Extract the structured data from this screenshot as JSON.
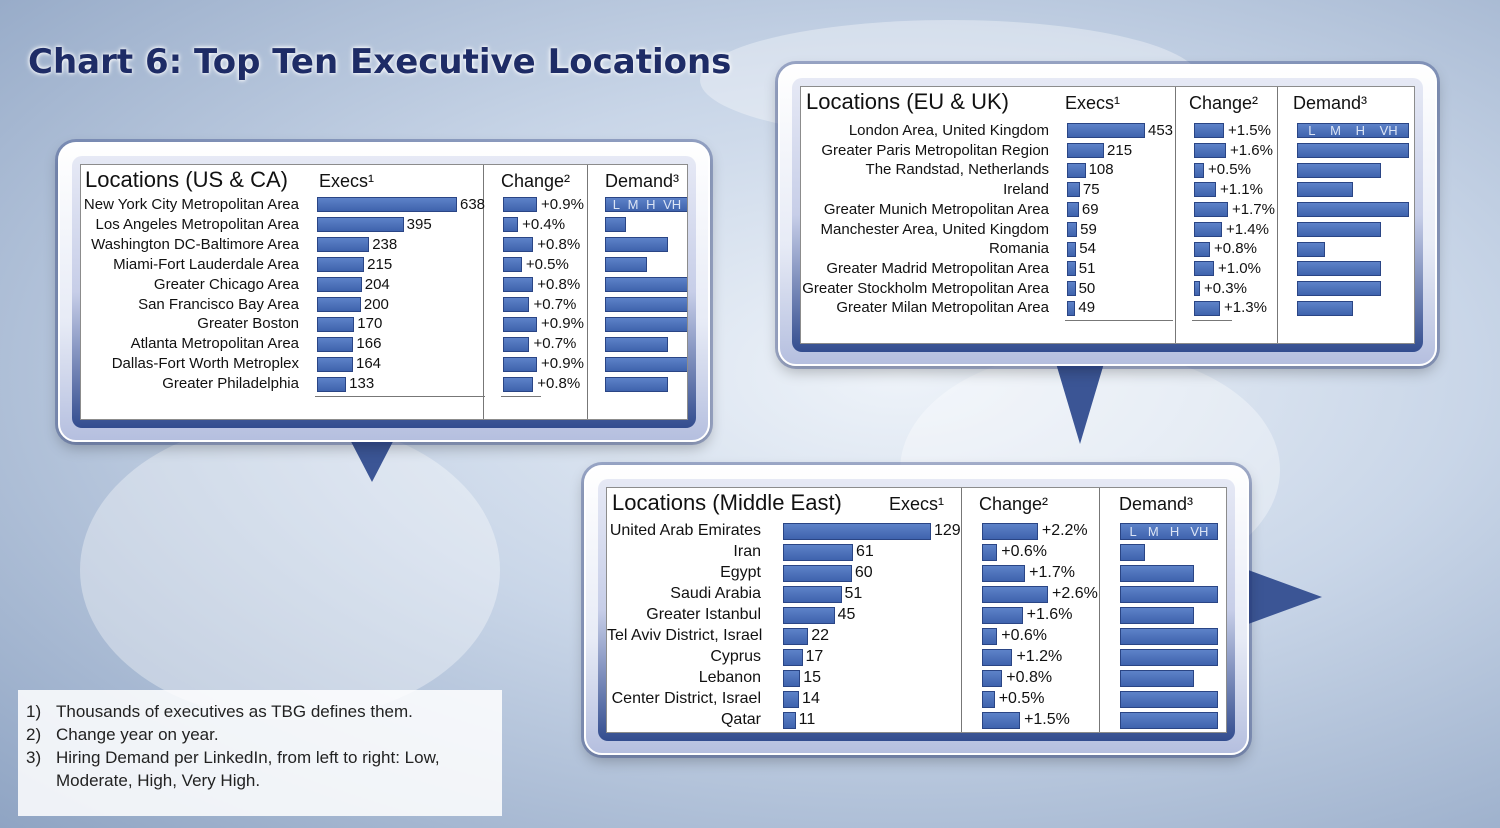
{
  "title": "Chart 6: Top Ten Executive Locations",
  "colors": {
    "bar": "#4a6db5",
    "title": "#1e2c66"
  },
  "chart_data": [
    {
      "type": "table",
      "title": "Locations (US & CA)",
      "columns": [
        "Locations (US & CA)",
        "Execs¹",
        "Change²",
        "Demand³"
      ],
      "demand_scale": [
        "L",
        "M",
        "H",
        "VH"
      ],
      "rows": [
        {
          "location": "New York City Metropolitan Area",
          "execs": 638,
          "change": 0.9,
          "change_label": "+0.9%",
          "demand": 0
        },
        {
          "location": "Los Angeles Metropolitan Area",
          "execs": 395,
          "change": 0.4,
          "change_label": "+0.4%",
          "demand": 1
        },
        {
          "location": "Washington DC-Baltimore Area",
          "execs": 238,
          "change": 0.8,
          "change_label": "+0.8%",
          "demand": 3
        },
        {
          "location": "Miami-Fort Lauderdale Area",
          "execs": 215,
          "change": 0.5,
          "change_label": "+0.5%",
          "demand": 2
        },
        {
          "location": "Greater Chicago Area",
          "execs": 204,
          "change": 0.8,
          "change_label": "+0.8%",
          "demand": 4
        },
        {
          "location": "San Francisco Bay Area",
          "execs": 200,
          "change": 0.7,
          "change_label": "+0.7%",
          "demand": 4
        },
        {
          "location": "Greater Boston",
          "execs": 170,
          "change": 0.9,
          "change_label": "+0.9%",
          "demand": 4
        },
        {
          "location": "Atlanta Metropolitan Area",
          "execs": 166,
          "change": 0.7,
          "change_label": "+0.7%",
          "demand": 3
        },
        {
          "location": "Dallas-Fort Worth Metroplex",
          "execs": 164,
          "change": 0.9,
          "change_label": "+0.9%",
          "demand": 4
        },
        {
          "location": "Greater Philadelphia",
          "execs": 133,
          "change": 0.8,
          "change_label": "+0.8%",
          "demand": 3
        }
      ]
    },
    {
      "type": "table",
      "title": "Locations (EU & UK)",
      "columns": [
        "Locations (EU & UK)",
        "Execs¹",
        "Change²",
        "Demand³"
      ],
      "demand_scale": [
        "L",
        "M",
        "H",
        "VH"
      ],
      "rows": [
        {
          "location": "London Area, United Kingdom",
          "execs": 453,
          "change": 1.5,
          "change_label": "+1.5%",
          "demand": 0
        },
        {
          "location": "Greater Paris Metropolitan Region",
          "execs": 215,
          "change": 1.6,
          "change_label": "+1.6%",
          "demand": 4
        },
        {
          "location": "The Randstad, Netherlands",
          "execs": 108,
          "change": 0.5,
          "change_label": "+0.5%",
          "demand": 3
        },
        {
          "location": "Ireland",
          "execs": 75,
          "change": 1.1,
          "change_label": "+1.1%",
          "demand": 2
        },
        {
          "location": "Greater Munich Metropolitan Area",
          "execs": 69,
          "change": 1.7,
          "change_label": "+1.7%",
          "demand": 4
        },
        {
          "location": "Manchester Area, United Kingdom",
          "execs": 59,
          "change": 1.4,
          "change_label": "+1.4%",
          "demand": 3
        },
        {
          "location": "Romania",
          "execs": 54,
          "change": 0.8,
          "change_label": "+0.8%",
          "demand": 1
        },
        {
          "location": "Greater Madrid Metropolitan Area",
          "execs": 51,
          "change": 1.0,
          "change_label": "+1.0%",
          "demand": 3
        },
        {
          "location": "Greater Stockholm Metropolitan Area",
          "execs": 50,
          "change": 0.3,
          "change_label": "+0.3%",
          "demand": 3
        },
        {
          "location": "Greater Milan Metropolitan Area",
          "execs": 49,
          "change": 1.3,
          "change_label": "+1.3%",
          "demand": 2
        }
      ]
    },
    {
      "type": "table",
      "title": "Locations (Middle East)",
      "columns": [
        "Locations (Middle East)",
        "Execs¹",
        "Change²",
        "Demand³"
      ],
      "demand_scale": [
        "L",
        "M",
        "H",
        "VH"
      ],
      "rows": [
        {
          "location": "United Arab Emirates",
          "execs": 129,
          "change": 2.2,
          "change_label": "+2.2%",
          "demand": 0
        },
        {
          "location": "Iran",
          "execs": 61,
          "change": 0.6,
          "change_label": "+0.6%",
          "demand": 1
        },
        {
          "location": "Egypt",
          "execs": 60,
          "change": 1.7,
          "change_label": "+1.7%",
          "demand": 3
        },
        {
          "location": "Saudi Arabia",
          "execs": 51,
          "change": 2.6,
          "change_label": "+2.6%",
          "demand": 4
        },
        {
          "location": "Greater Istanbul",
          "execs": 45,
          "change": 1.6,
          "change_label": "+1.6%",
          "demand": 3
        },
        {
          "location": "Tel Aviv District, Israel",
          "execs": 22,
          "change": 0.6,
          "change_label": "+0.6%",
          "demand": 4
        },
        {
          "location": "Cyprus",
          "execs": 17,
          "change": 1.2,
          "change_label": "+1.2%",
          "demand": 4
        },
        {
          "location": "Lebanon",
          "execs": 15,
          "change": 0.8,
          "change_label": "+0.8%",
          "demand": 3
        },
        {
          "location": "Center District, Israel",
          "execs": 14,
          "change": 0.5,
          "change_label": "+0.5%",
          "demand": 4
        },
        {
          "location": "Qatar",
          "execs": 11,
          "change": 1.5,
          "change_label": "+1.5%",
          "demand": 4
        }
      ]
    }
  ],
  "notes": [
    {
      "num": "1)",
      "text": "Thousands of executives as TBG defines them."
    },
    {
      "num": "2)",
      "text": "Change year on year."
    },
    {
      "num": "3)",
      "text": "Hiring Demand per LinkedIn, from left to right: Low, Moderate, High, Very High."
    }
  ]
}
